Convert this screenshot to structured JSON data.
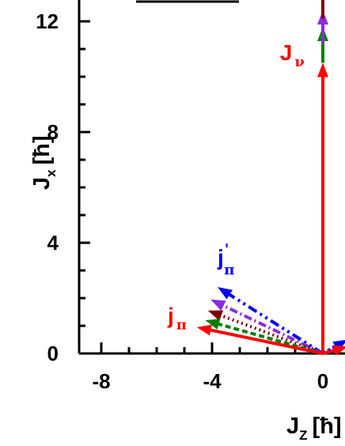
{
  "chart_data": {
    "type": "line",
    "title": "",
    "xlabel": "J",
    "xlabel_sub": "Z",
    "xlabel_unit": "[ħ]",
    "ylabel": "J",
    "ylabel_sub": "x",
    "ylabel_unit": "[ħ]",
    "xlim": [
      -8.8,
      0.9
    ],
    "ylim": [
      0,
      13.2
    ],
    "x_ticks": [
      -8,
      -4,
      0
    ],
    "x_tick_labels": [
      "-8",
      "-4",
      "0"
    ],
    "y_ticks": [
      0,
      4,
      8,
      12
    ],
    "y_tick_labels": [
      "0",
      "4",
      "8",
      "12"
    ],
    "grid": false,
    "annotations": [
      {
        "text": "J",
        "sub": "ν",
        "color": "#ff0000",
        "x": -1.55,
        "y": 10.6
      },
      {
        "text": "j",
        "sub": "π",
        "sup": "'",
        "color": "#0000ff",
        "x": -3.8,
        "y": 3.2
      },
      {
        "text": "j",
        "sub": "π",
        "color": "#ff0000",
        "x": -5.6,
        "y": 1.1
      }
    ],
    "series": [
      {
        "color": "#0000ff",
        "dash": "12,5,3,5,3,5",
        "values": [
          [
            0,
            0
          ],
          [
            -3.8,
            2.4
          ]
        ]
      },
      {
        "color": "#8a2be2",
        "dash": "10,4,2,4",
        "values": [
          [
            0,
            0
          ],
          [
            -4.05,
            1.95
          ]
        ]
      },
      {
        "color": "#800000",
        "dash": "2,4",
        "values": [
          [
            0,
            0
          ],
          [
            -4.15,
            1.55
          ]
        ]
      },
      {
        "color": "#008000",
        "dash": "7,4",
        "values": [
          [
            0,
            0
          ],
          [
            -4.25,
            1.2
          ]
        ]
      },
      {
        "color": "#ff0000",
        "dash": "",
        "values": [
          [
            0,
            0
          ],
          [
            -4.55,
            0.95
          ]
        ]
      },
      {
        "color": "#ff0000",
        "dash": "",
        "values": [
          [
            0,
            0
          ],
          [
            0,
            10.5
          ]
        ]
      },
      {
        "color": "#008000",
        "dash": "",
        "values": [
          [
            0,
            10.5
          ],
          [
            0,
            11.8
          ]
        ]
      },
      {
        "color": "#8a2be2",
        "dash": "",
        "values": [
          [
            0,
            11.2
          ],
          [
            0,
            12.4
          ]
        ]
      },
      {
        "color": "#800000",
        "dash": "",
        "values": [
          [
            0,
            12.1
          ],
          [
            0,
            13.3
          ]
        ]
      },
      {
        "color": "#0000ff",
        "dash": "4,3",
        "values": [
          [
            0,
            0
          ],
          [
            0.9,
            0.5
          ]
        ]
      },
      {
        "color": "#ff0000",
        "dash": "",
        "values": [
          [
            0,
            0
          ],
          [
            0.9,
            0.25
          ]
        ]
      }
    ],
    "legend_visible_text": "",
    "legend_color": "#000000"
  }
}
